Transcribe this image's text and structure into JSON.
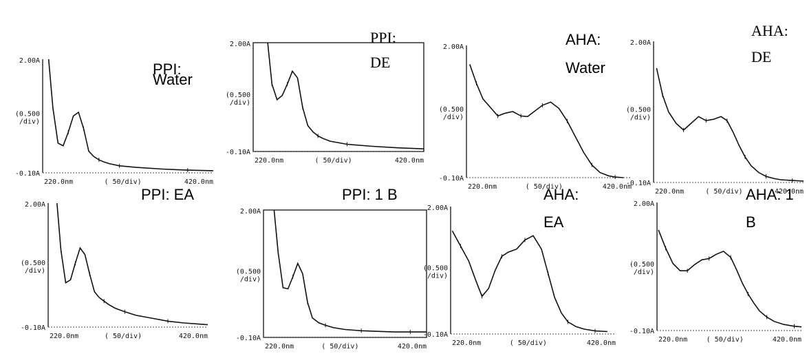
{
  "chart_data": [
    {
      "type": "line",
      "label": "PPI: Water",
      "ytop": "2.00A",
      "ydiv": [
        "(0.500",
        "/div)"
      ],
      "ybottom": "-0.10A",
      "xleft": "220.0nm",
      "xdiv": "( 50/div)",
      "xright": "420.0nm",
      "xlim": [
        220,
        420
      ],
      "ylim": [
        -0.1,
        2.0
      ],
      "x": [
        227,
        232,
        238,
        244,
        250,
        256,
        262,
        268,
        274,
        280,
        286,
        292,
        298,
        310,
        330,
        360,
        390,
        420
      ],
      "y": [
        2.0,
        1.1,
        0.45,
        0.4,
        0.65,
        0.95,
        1.02,
        0.72,
        0.3,
        0.2,
        0.14,
        0.1,
        0.07,
        0.03,
        0.0,
        -0.03,
        -0.05,
        -0.06
      ]
    },
    {
      "type": "line",
      "label": "PPI: DE",
      "ytop": "2.00A",
      "ydiv": [
        "(0.500",
        "/div)"
      ],
      "ybottom": "-0.10A",
      "xleft": "220.0nm",
      "xdiv": "( 50/div)",
      "xright": "420.0nm",
      "xlim": [
        220,
        420
      ],
      "ylim": [
        -0.1,
        2.0
      ],
      "x": [
        237,
        242,
        248,
        254,
        260,
        266,
        272,
        278,
        284,
        290,
        296,
        302,
        310,
        330,
        360,
        390,
        420
      ],
      "y": [
        2.0,
        1.2,
        0.9,
        0.98,
        1.2,
        1.45,
        1.32,
        0.75,
        0.4,
        0.28,
        0.2,
        0.15,
        0.1,
        0.04,
        0.0,
        -0.03,
        -0.05
      ]
    },
    {
      "type": "line",
      "label": "AHA: Water",
      "ytop": "2.00A",
      "ydiv": [
        "(0.500",
        "/div)"
      ],
      "ybottom": "-0.10A",
      "xleft": "220.0nm",
      "xdiv": "( 50/div)",
      "xright": "420.0nm",
      "xlim": [
        220,
        420
      ],
      "ylim": [
        -0.1,
        2.0
      ],
      "x": [
        224,
        232,
        240,
        250,
        258,
        266,
        276,
        286,
        294,
        302,
        312,
        322,
        332,
        342,
        352,
        362,
        372,
        382,
        392,
        400,
        410
      ],
      "y": [
        1.7,
        1.4,
        1.15,
        1.0,
        0.88,
        0.92,
        0.95,
        0.88,
        0.87,
        0.95,
        1.05,
        1.1,
        1.0,
        0.8,
        0.55,
        0.3,
        0.1,
        -0.02,
        -0.07,
        -0.09,
        -0.1
      ]
    },
    {
      "type": "line",
      "label": "AHA: DE",
      "ytop": "2.00A",
      "ydiv": [
        "(0.500",
        "/div)"
      ],
      "ybottom": "-0.10A",
      "xleft": "220.0nm",
      "xdiv": "( 50/div)",
      "xright": "420.0nm",
      "xlim": [
        220,
        420
      ],
      "ylim": [
        -0.1,
        2.0
      ],
      "x": [
        224,
        232,
        240,
        250,
        260,
        270,
        280,
        290,
        300,
        310,
        318,
        326,
        334,
        342,
        350,
        360,
        370,
        380,
        390,
        405,
        420
      ],
      "y": [
        1.6,
        1.2,
        0.95,
        0.78,
        0.68,
        0.78,
        0.88,
        0.82,
        0.84,
        0.88,
        0.82,
        0.65,
        0.45,
        0.28,
        0.15,
        0.05,
        -0.01,
        -0.04,
        -0.06,
        -0.07,
        -0.08
      ]
    },
    {
      "type": "line",
      "label": "PPI: EA",
      "ytop": "2.00A",
      "ydiv": [
        "(0.500",
        "/div)"
      ],
      "ybottom": "-0.10A",
      "xleft": "220.0nm",
      "xdiv": "( 50/div)",
      "xright": "420.0nm",
      "xlim": [
        220,
        420
      ],
      "ylim": [
        -0.1,
        2.0
      ],
      "x": [
        231,
        236,
        242,
        248,
        254,
        260,
        266,
        272,
        278,
        284,
        290,
        296,
        304,
        316,
        330,
        350,
        370,
        390,
        420
      ],
      "y": [
        2.0,
        1.2,
        0.65,
        0.7,
        0.98,
        1.24,
        1.13,
        0.8,
        0.5,
        0.4,
        0.34,
        0.28,
        0.22,
        0.16,
        0.1,
        0.05,
        0.0,
        -0.03,
        -0.06
      ]
    },
    {
      "type": "line",
      "label": "PPI: 1 B",
      "ytop": "2.00A",
      "ydiv": [
        "(0.500",
        "/div)"
      ],
      "ybottom": "-0.10A",
      "xleft": "220.0nm",
      "xdiv": "( 50/div)",
      "xright": "420.0nm",
      "xlim": [
        220,
        420
      ],
      "ylim": [
        -0.1,
        2.0
      ],
      "x": [
        233,
        238,
        244,
        250,
        256,
        262,
        268,
        274,
        280,
        288,
        296,
        306,
        320,
        340,
        360,
        380,
        400,
        420
      ],
      "y": [
        2.0,
        1.3,
        0.72,
        0.7,
        0.9,
        1.12,
        0.95,
        0.48,
        0.22,
        0.14,
        0.1,
        0.06,
        0.03,
        0.01,
        0.0,
        -0.01,
        -0.01,
        -0.01
      ]
    },
    {
      "type": "line",
      "label": "AHA: EA",
      "ytop": "2.00A",
      "ydiv": [
        "(0.500",
        "/div)"
      ],
      "ybottom": "-0.10A",
      "xleft": "220.0nm",
      "xdiv": "( 50/div)",
      "xright": "420.0nm",
      "xlim": [
        220,
        420
      ],
      "ylim": [
        -0.1,
        2.0
      ],
      "x": [
        222,
        232,
        242,
        250,
        258,
        266,
        274,
        282,
        290,
        300,
        310,
        320,
        330,
        338,
        346,
        354,
        362,
        372,
        382,
        395,
        410
      ],
      "y": [
        1.6,
        1.35,
        1.1,
        0.8,
        0.52,
        0.65,
        0.95,
        1.18,
        1.25,
        1.3,
        1.45,
        1.52,
        1.3,
        0.9,
        0.5,
        0.25,
        0.1,
        0.02,
        -0.02,
        -0.05,
        -0.06
      ]
    },
    {
      "type": "line",
      "label": "AHA: 1 B",
      "ytop": "2.00A",
      "ydiv": [
        "(0.500",
        "/div)"
      ],
      "ybottom": "-0.10A",
      "xleft": "220.0nm",
      "xdiv": "( 50/div)",
      "xright": "420.0nm",
      "xlim": [
        220,
        420
      ],
      "ylim": [
        -0.1,
        2.0
      ],
      "x": [
        222,
        232,
        242,
        252,
        262,
        272,
        282,
        292,
        302,
        312,
        322,
        330,
        338,
        346,
        354,
        362,
        372,
        382,
        395,
        410,
        420
      ],
      "y": [
        1.55,
        1.25,
        1.0,
        0.88,
        0.88,
        0.98,
        1.06,
        1.08,
        1.15,
        1.2,
        1.1,
        0.9,
        0.68,
        0.5,
        0.35,
        0.22,
        0.12,
        0.05,
        0.0,
        -0.03,
        -0.04
      ]
    }
  ]
}
